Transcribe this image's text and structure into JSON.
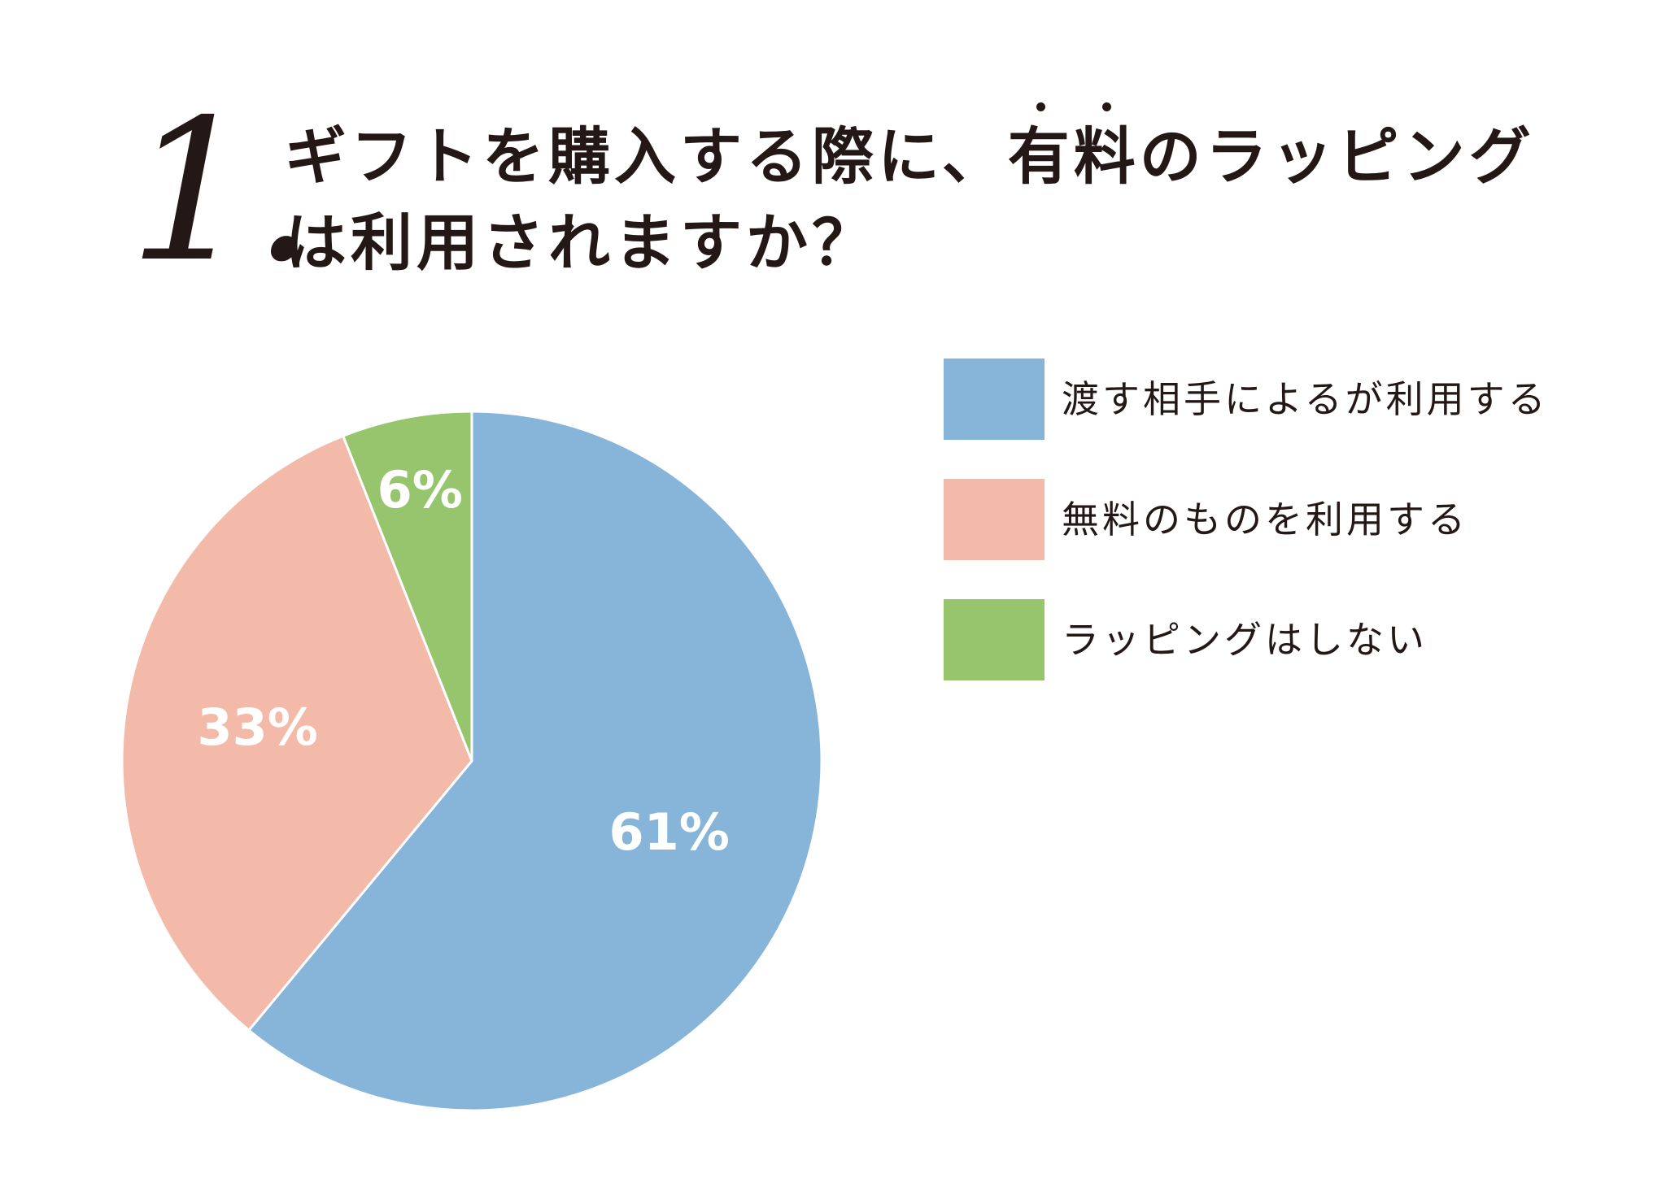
{
  "question": {
    "number": "1.",
    "title_line1": {
      "before": "ギフトを購入する際に、",
      "emph1": "有",
      "emph2": "料",
      "after": "のラッピング"
    },
    "title_line2": "は利用されますか？"
  },
  "chart_data": {
    "type": "pie",
    "title": "ギフトを購入する際に、有料のラッピングは利用されますか？",
    "start_angle_deg": 0,
    "direction": "clockwise",
    "legend_position": "right",
    "slices": [
      {
        "label": "渡す相手によるが利用する",
        "value": 61,
        "display": "61%",
        "color": "#87b4d9"
      },
      {
        "label": "無料のものを利用する",
        "value": 33,
        "display": "33%",
        "color": "#f3b9a9"
      },
      {
        "label": "ラッピングはしない",
        "value": 6,
        "display": "6%",
        "color": "#96c56e"
      }
    ]
  }
}
